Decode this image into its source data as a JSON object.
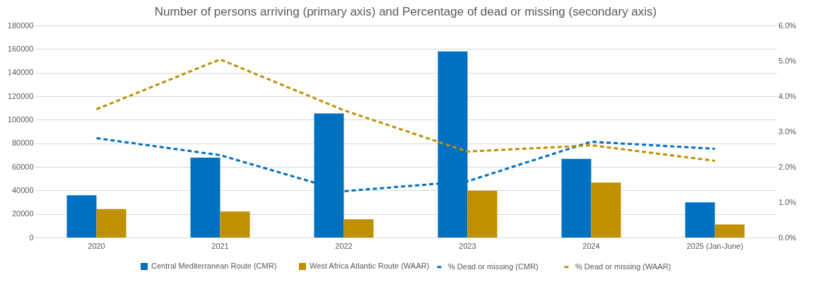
{
  "chart_data": {
    "type": "bar",
    "title": "Number of persons arriving (primary axis) and Percentage of dead or missing (secondary axis)",
    "categories": [
      "2020",
      "2021",
      "2022",
      "2023",
      "2024",
      "2025 (Jan-June)"
    ],
    "series": [
      {
        "name": "Central Mediterranean Route (CMR)",
        "color": "#0070c0",
        "values": [
          35800,
          67800,
          105300,
          158000,
          66700,
          29800
        ]
      },
      {
        "name": "West Africa Atlantic Route (WAAR)",
        "color": "#bf9000",
        "values": [
          24200,
          22000,
          15500,
          39800,
          46700,
          11100
        ]
      },
      {
        "name": "% Dead or missing (CMR)",
        "type": "line",
        "axis": "y2",
        "line_style": "dashed",
        "color": "#0070c0",
        "values": [
          2.81,
          2.33,
          1.31,
          1.59,
          2.71,
          2.51
        ]
      },
      {
        "name": "% Dead or missing (WAAR)",
        "type": "line",
        "axis": "y2",
        "line_style": "dashed",
        "color": "#bf9000",
        "values": [
          3.63,
          5.04,
          3.6,
          2.43,
          2.61,
          2.17
        ]
      }
    ],
    "ylim": [
      0,
      180000
    ],
    "yticks": [
      0,
      20000,
      40000,
      60000,
      80000,
      100000,
      120000,
      140000,
      160000,
      180000
    ],
    "y2lim": [
      0,
      6
    ],
    "y2ticks": [
      {
        "value": 0,
        "label": "0.0%"
      },
      {
        "value": 1,
        "label": "1.0%"
      },
      {
        "value": 2,
        "label": "2.0%"
      },
      {
        "value": 3,
        "label": "3.0%"
      },
      {
        "value": 4,
        "label": "4.0%"
      },
      {
        "value": 5,
        "label": "5.0%"
      },
      {
        "value": 6,
        "label": "6.0%"
      }
    ],
    "grid": "y",
    "legend": "bottom",
    "marker": "none"
  }
}
